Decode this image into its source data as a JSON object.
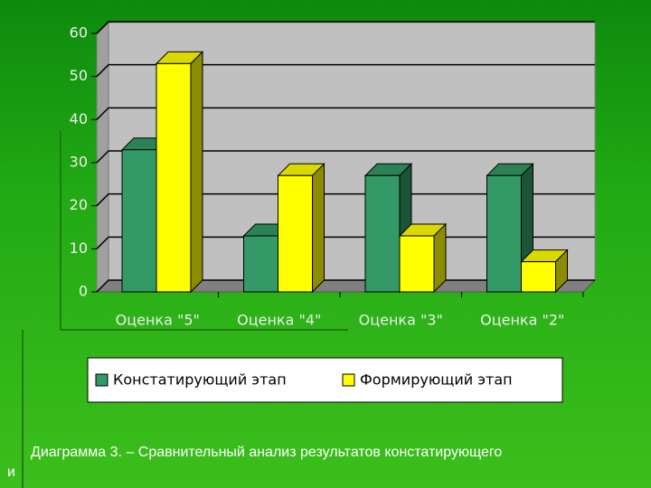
{
  "chart_data": {
    "type": "bar3d",
    "categories": [
      "Оценка \"5\"",
      "Оценка \"4\"",
      "Оценка \"3\"",
      "Оценка \"2\""
    ],
    "series": [
      {
        "name": "Констатирующий этап",
        "color": "#339966",
        "values": [
          33,
          13,
          27,
          27
        ]
      },
      {
        "name": "Формирующий этап",
        "color": "#ffff00",
        "values": [
          53,
          27,
          13,
          7
        ]
      }
    ],
    "ylim": [
      0,
      60
    ],
    "yticks": [
      0,
      10,
      20,
      30,
      40,
      50,
      60
    ],
    "grid": true,
    "legend": "bottom",
    "caption": "Диаграмма 3. – Сравнительный анализ результатов констатирующего и"
  }
}
